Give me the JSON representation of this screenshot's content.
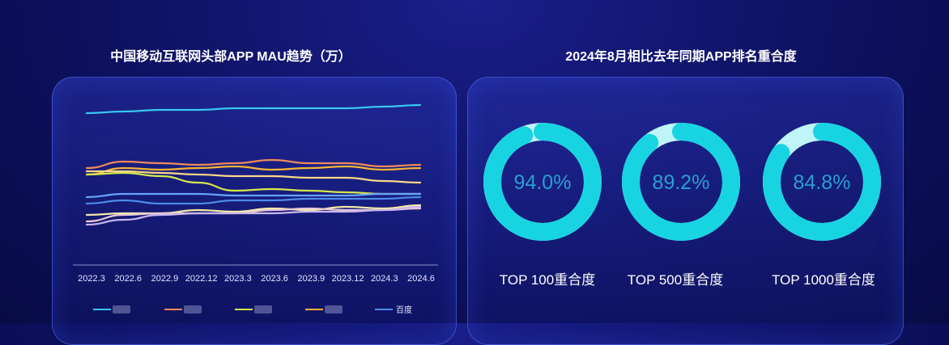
{
  "left_title": "中国移动互联网头部APP MAU趋势（万）",
  "right_title": "2024年8月相比去年同期APP排名重合度",
  "colors": {
    "ring": "#18d4e3",
    "ring_track": "#bff4f8",
    "percent_text": "#2a9fd0",
    "axis": "#8a90c8"
  },
  "chart_data": [
    {
      "type": "line",
      "title": "中国移动互联网头部APP MAU趋势（万）",
      "x": [
        "2022.3",
        "2022.6",
        "2022.9",
        "2022.12",
        "2023.3",
        "2023.6",
        "2023.9",
        "2023.12",
        "2024.3",
        "2024.6"
      ],
      "series": [
        {
          "color": "#38c6f0",
          "values": [
            100,
            101,
            102,
            102,
            103,
            103,
            103,
            103,
            104,
            105
          ]
        },
        {
          "color": "#f08a5d",
          "values": [
            66,
            70,
            69,
            68,
            69,
            71,
            69,
            69,
            67,
            68
          ]
        },
        {
          "color": "#f5b335",
          "values": [
            62,
            66,
            65,
            66,
            67,
            65,
            66,
            67,
            65,
            66
          ]
        },
        {
          "color": "#d6e84a",
          "values": [
            62,
            63,
            61,
            57,
            52,
            53,
            52,
            51,
            50,
            50
          ]
        },
        {
          "color": "#f8d68a",
          "values": [
            64,
            64,
            63,
            62,
            61,
            61,
            60,
            60,
            58,
            57
          ]
        },
        {
          "color": "#66a3ff",
          "values": [
            48,
            50,
            50,
            50,
            49,
            49,
            49,
            49,
            50,
            50
          ]
        },
        {
          "color": "#4e8ae8",
          "values": [
            44,
            46,
            44,
            44,
            46,
            46,
            47,
            47,
            47,
            48
          ]
        },
        {
          "color": "#f3e9a8",
          "values": [
            37,
            38,
            38,
            40,
            39,
            41,
            40,
            42,
            41,
            43
          ]
        },
        {
          "color": "#e8c8d8",
          "values": [
            33,
            37,
            38,
            38,
            38,
            40,
            41,
            40,
            40,
            41
          ]
        },
        {
          "color": "#c9b6f0",
          "values": [
            31,
            34,
            37,
            38,
            38,
            38,
            39,
            39,
            40,
            42
          ]
        }
      ],
      "legend": {
        "placement": "bottom",
        "visible_labels": [
          "百度"
        ]
      }
    },
    {
      "type": "pie",
      "title": "2024年8月相比去年同期APP排名重合度",
      "items": [
        {
          "label": "TOP 100重合度",
          "value": 94.0,
          "display": "94.0%"
        },
        {
          "label": "TOP 500重合度",
          "value": 89.2,
          "display": "89.2%"
        },
        {
          "label": "TOP 1000重合度",
          "value": 84.8,
          "display": "84.8%"
        }
      ]
    }
  ]
}
